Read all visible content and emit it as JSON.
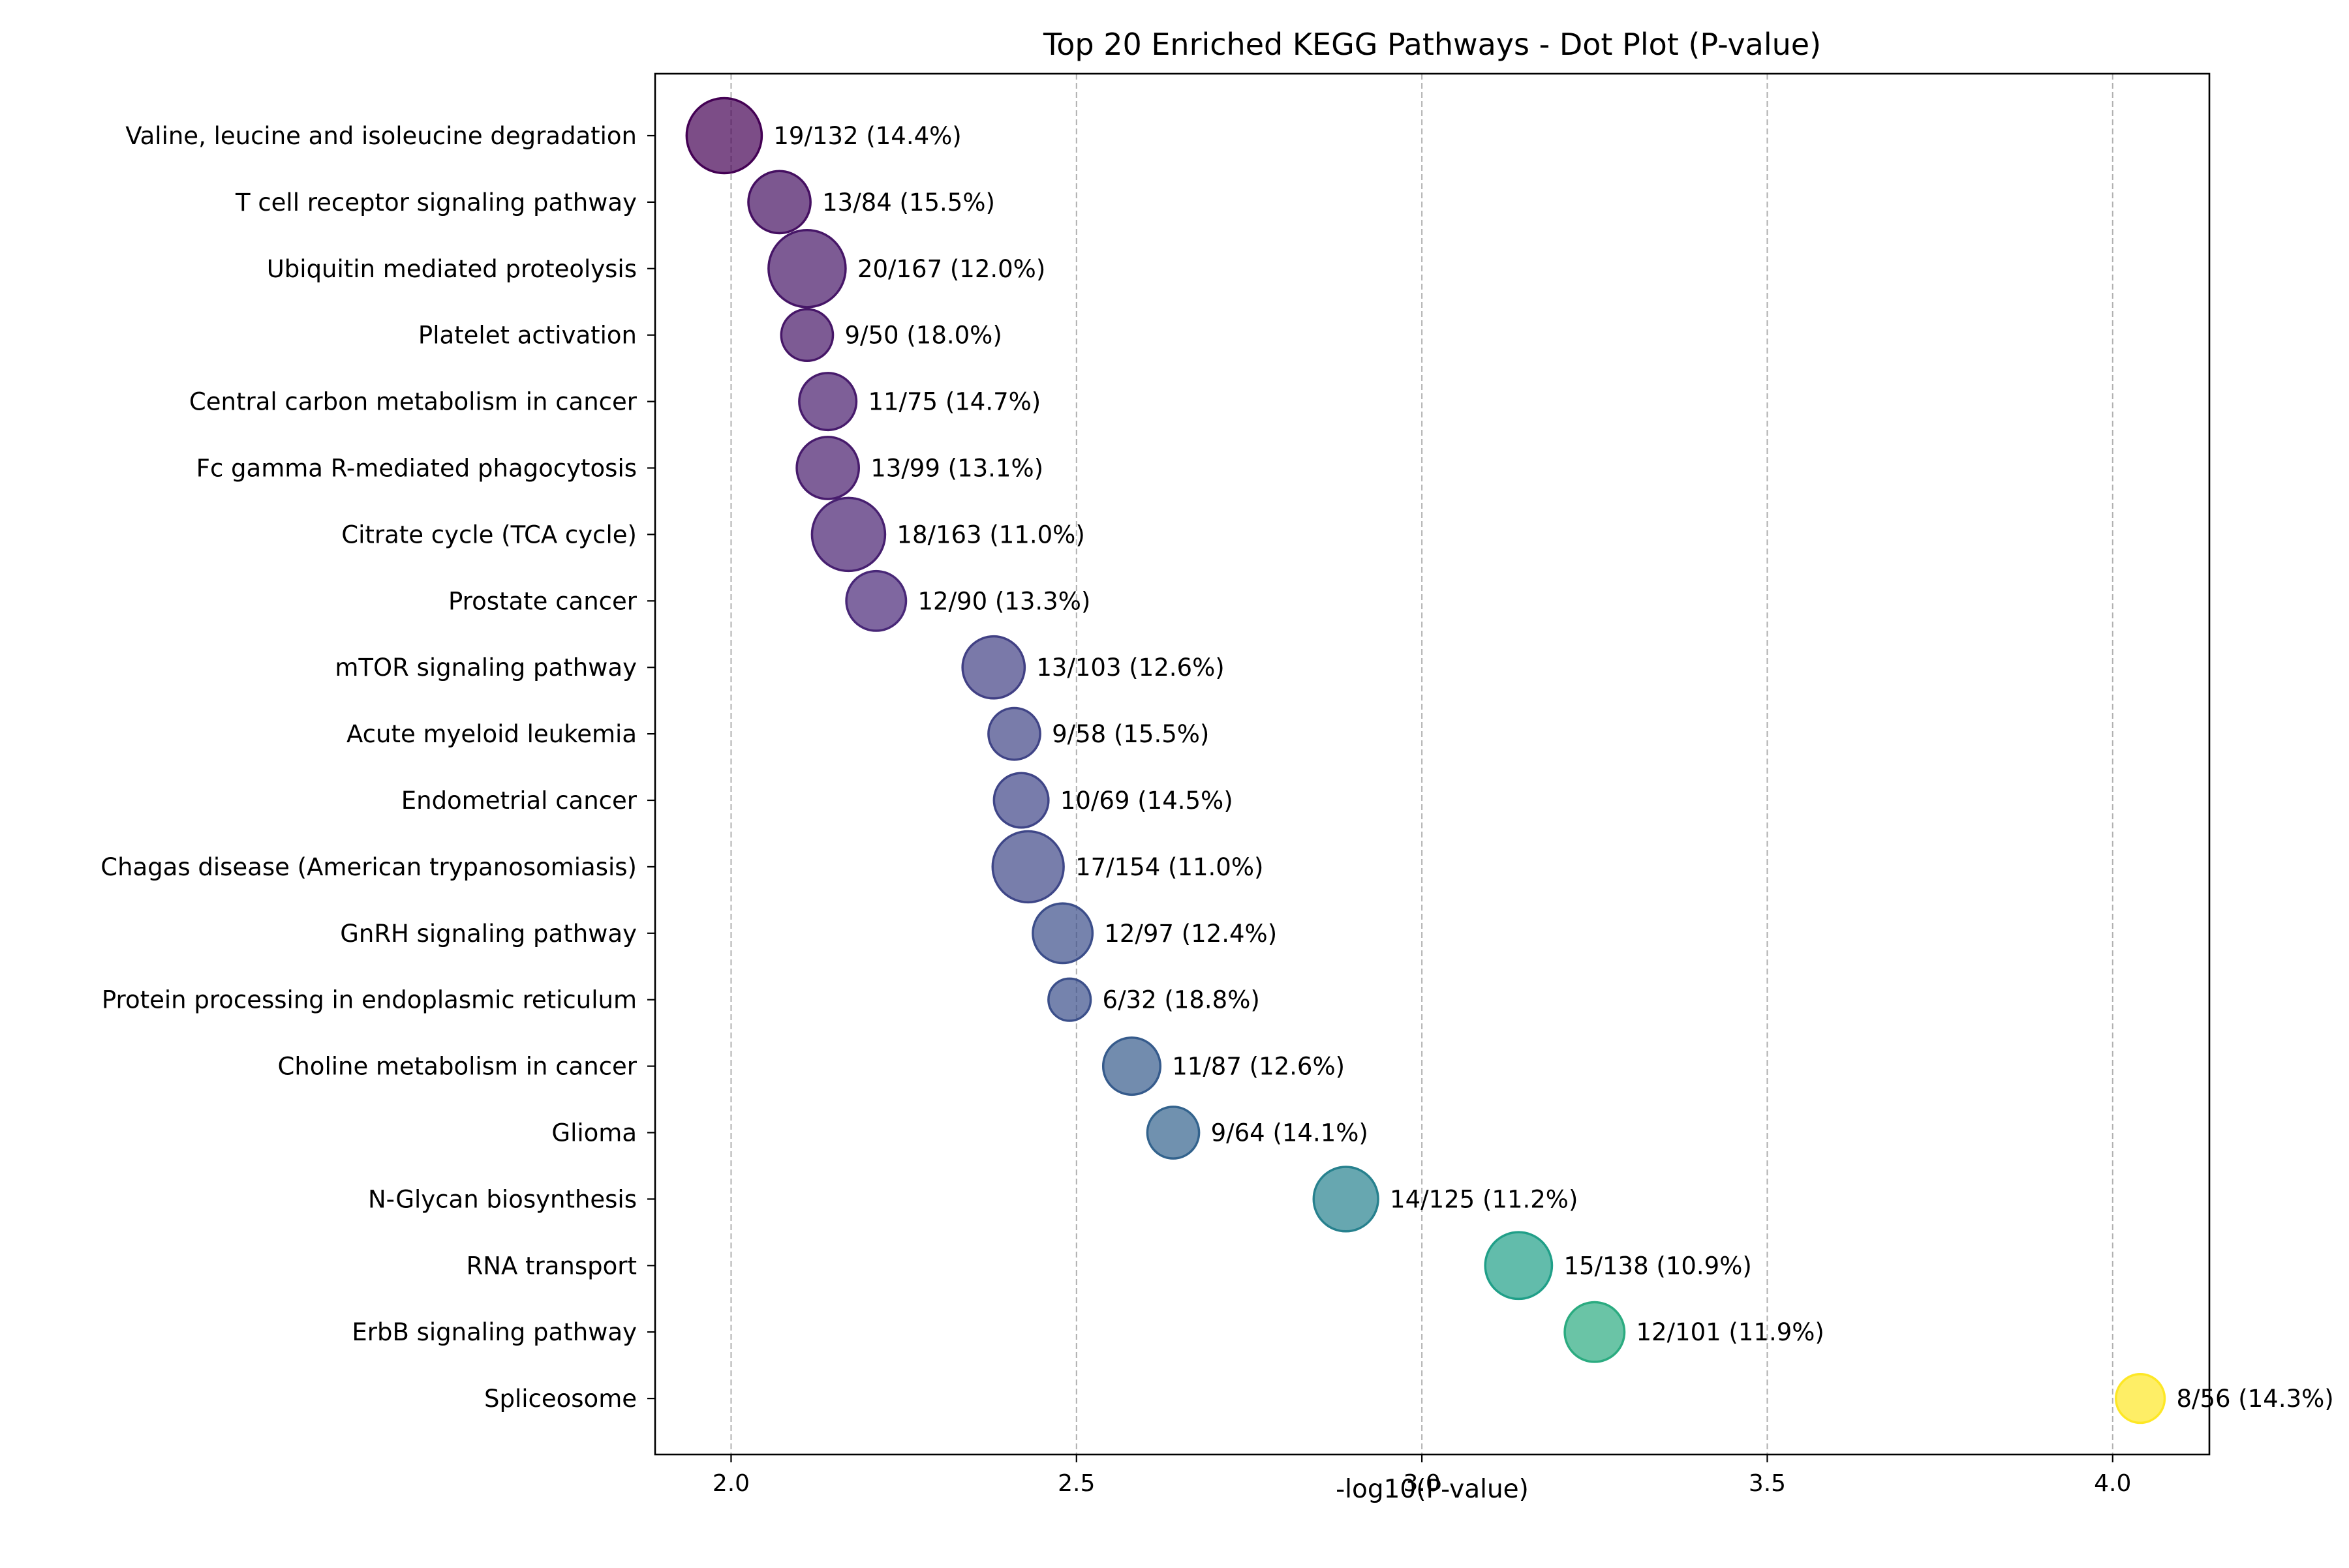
{
  "chart_data": {
    "type": "scatter",
    "title": "Top 20 Enriched KEGG Pathways - Dot Plot (P-value)",
    "xlabel": "-log10(P-value)",
    "ylabel": "",
    "xlim": [
      1.89,
      4.14
    ],
    "xticks": [
      2.0,
      2.5,
      3.0,
      3.5,
      4.0
    ],
    "xtick_labels": [
      "2.0",
      "2.5",
      "3.0",
      "3.5",
      "4.0"
    ],
    "grid": "x-axis dashed vertical lines",
    "legend": "none",
    "marker_size_encodes": "gene count",
    "marker_color_encodes": "-log10(P-value), viridis colormap",
    "colormap_stops": [
      "#440154",
      "#482878",
      "#3e4989",
      "#31688e",
      "#26828e",
      "#1f9e89",
      "#35b779",
      "#6ece58",
      "#b5de2b",
      "#fde725"
    ],
    "categories": [
      "Valine, leucine and isoleucine degradation",
      "T cell receptor signaling pathway",
      "Ubiquitin mediated proteolysis",
      "Platelet activation",
      "Central carbon metabolism in cancer",
      "Fc gamma R-mediated phagocytosis",
      "Citrate cycle (TCA cycle)",
      "Prostate cancer",
      "mTOR signaling pathway",
      "Acute myeloid leukemia",
      "Endometrial cancer",
      "Chagas disease (American trypanosomiasis)",
      "GnRH signaling pathway",
      "Protein processing in endoplasmic reticulum",
      "Choline metabolism in cancer",
      "Glioma",
      "N-Glycan biosynthesis",
      "RNA transport",
      "ErbB signaling pathway",
      "Spliceosome"
    ],
    "x": [
      1.99,
      2.07,
      2.11,
      2.11,
      2.14,
      2.14,
      2.17,
      2.21,
      2.38,
      2.41,
      2.42,
      2.43,
      2.48,
      2.49,
      2.58,
      2.64,
      2.89,
      3.14,
      3.25,
      4.04
    ],
    "counts": [
      19,
      13,
      20,
      9,
      11,
      13,
      18,
      12,
      13,
      9,
      10,
      17,
      12,
      6,
      11,
      9,
      14,
      15,
      12,
      8
    ],
    "point_labels": [
      "19/132 (14.4%)",
      "13/84 (15.5%)",
      "20/167 (12.0%)",
      "9/50 (18.0%)",
      "11/75 (14.7%)",
      "13/99 (13.1%)",
      "18/163 (11.0%)",
      "12/90 (13.3%)",
      "13/103 (12.6%)",
      "9/58 (15.5%)",
      "10/69 (14.5%)",
      "17/154 (11.0%)",
      "12/97 (12.4%)",
      "6/32 (18.8%)",
      "11/87 (12.6%)",
      "9/64 (14.1%)",
      "14/125 (11.2%)",
      "15/138 (10.9%)",
      "12/101 (11.9%)",
      "8/56 (14.3%)"
    ]
  }
}
